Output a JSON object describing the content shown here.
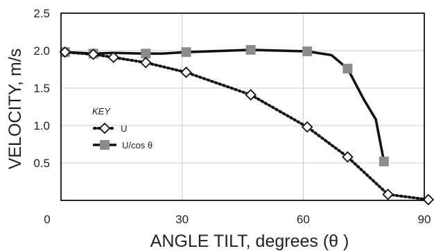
{
  "chart_data": {
    "type": "line",
    "xlabel": "ANGLE TILT, degrees (θ )",
    "ylabel": "VELOCITY, m/s",
    "xlim": [
      0,
      90
    ],
    "ylim": [
      0,
      2.5
    ],
    "xticks": [
      "0",
      "30",
      "60",
      "90"
    ],
    "yticks": [
      "0.5",
      "1.0",
      "1.5",
      "2.0",
      "2.5"
    ],
    "grid": true,
    "legend": {
      "title": "KEY",
      "placement": "center-left",
      "items": [
        "U",
        "U/cos θ"
      ]
    },
    "series": [
      {
        "name": "U",
        "style": "dotted",
        "marker": "diamond-open",
        "color": "#111111",
        "points": [
          [
            1,
            1.98
          ],
          [
            8,
            1.95
          ],
          [
            13,
            1.91
          ],
          [
            21,
            1.84
          ],
          [
            31,
            1.71
          ],
          [
            47,
            1.41
          ],
          [
            61,
            0.98
          ],
          [
            71,
            0.58
          ],
          [
            81,
            0.08
          ],
          [
            91,
            0.01
          ]
        ]
      },
      {
        "name": "U/cos θ",
        "style": "solid",
        "marker": "square-filled",
        "color": "#111111",
        "marker_color": "#8c8c8c",
        "points": [
          [
            1,
            1.98
          ],
          [
            8,
            1.96
          ],
          [
            13,
            1.97
          ],
          [
            21,
            1.96
          ],
          [
            25,
            1.96
          ],
          [
            31,
            1.98
          ],
          [
            47,
            2.01
          ],
          [
            61,
            1.99
          ],
          [
            67,
            1.94
          ],
          [
            71,
            1.76
          ],
          [
            75,
            1.35
          ],
          [
            78,
            1.08
          ],
          [
            80,
            0.52
          ]
        ],
        "marker_points": [
          [
            1,
            1.98
          ],
          [
            8,
            1.96
          ],
          [
            21,
            1.96
          ],
          [
            31,
            1.98
          ],
          [
            47,
            2.01
          ],
          [
            61,
            1.99
          ],
          [
            71,
            1.76
          ],
          [
            80,
            0.52
          ]
        ]
      }
    ]
  }
}
